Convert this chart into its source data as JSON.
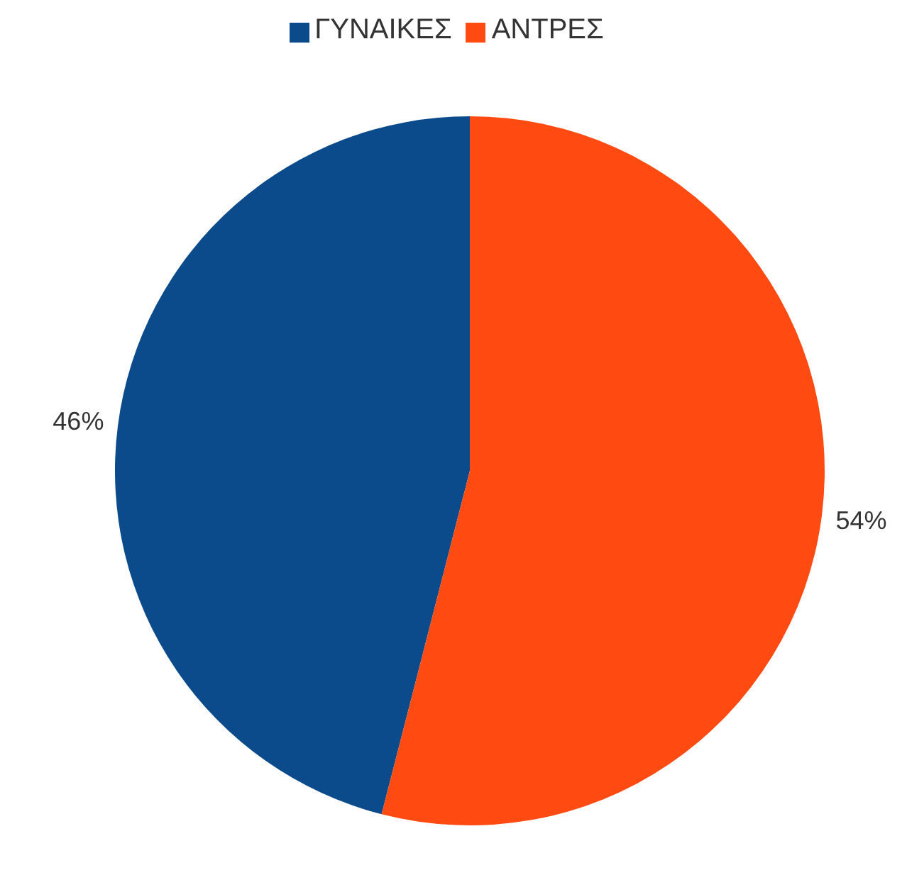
{
  "chart_data": {
    "type": "pie",
    "categories": [
      "ΓΥΝΑΙΚΕΣ",
      "ΑΝΤΡΕΣ"
    ],
    "values": [
      46,
      54
    ],
    "colors": [
      "#0b4b8c",
      "#ff4a12"
    ],
    "value_labels": [
      "46%",
      "54%"
    ],
    "legend": "top"
  }
}
